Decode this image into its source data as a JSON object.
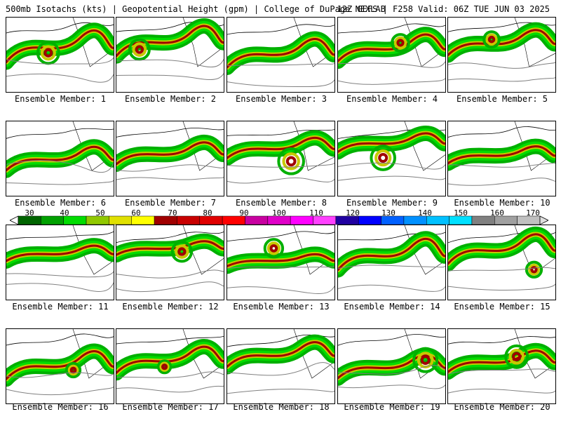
{
  "header": {
    "left_title": "500mb Isotachs (kts) | Geopotential Height (gpm) | College of DuPage NEXLAB",
    "right_title": "12Z GEFS | F258 Valid: 06Z TUE JUN 03 2025"
  },
  "panels": [
    {
      "label": "Ensemble Member: 1"
    },
    {
      "label": "Ensemble Member: 2"
    },
    {
      "label": "Ensemble Member: 3"
    },
    {
      "label": "Ensemble Member: 4"
    },
    {
      "label": "Ensemble Member: 5"
    },
    {
      "label": "Ensemble Member: 6"
    },
    {
      "label": "Ensemble Member: 7"
    },
    {
      "label": "Ensemble Member: 8"
    },
    {
      "label": "Ensemble Member: 9"
    },
    {
      "label": "Ensemble Member: 10"
    },
    {
      "label": "Ensemble Member: 11"
    },
    {
      "label": "Ensemble Member: 12"
    },
    {
      "label": "Ensemble Member: 13"
    },
    {
      "label": "Ensemble Member: 14"
    },
    {
      "label": "Ensemble Member: 15"
    },
    {
      "label": "Ensemble Member: 16"
    },
    {
      "label": "Ensemble Member: 17"
    },
    {
      "label": "Ensemble Member: 18"
    },
    {
      "label": "Ensemble Member: 19"
    },
    {
      "label": "Ensemble Member: 20"
    }
  ],
  "colorbar": {
    "ticks": [
      "30",
      "40",
      "50",
      "60",
      "70",
      "80",
      "90",
      "100",
      "110",
      "120",
      "130",
      "140",
      "150",
      "160",
      "170"
    ],
    "colors": [
      "#006400",
      "#00a000",
      "#00dc00",
      "#90c800",
      "#e0e000",
      "#ffff00",
      "#a00000",
      "#c80000",
      "#e00000",
      "#ff0000",
      "#c800a0",
      "#e000c8",
      "#ff00ff",
      "#ff40ff",
      "#2000a0",
      "#0000ff",
      "#0060ff",
      "#0090ff",
      "#00c0ff",
      "#00e0ff",
      "#808080",
      "#a0a0a0",
      "#c0c0c0"
    ]
  }
}
